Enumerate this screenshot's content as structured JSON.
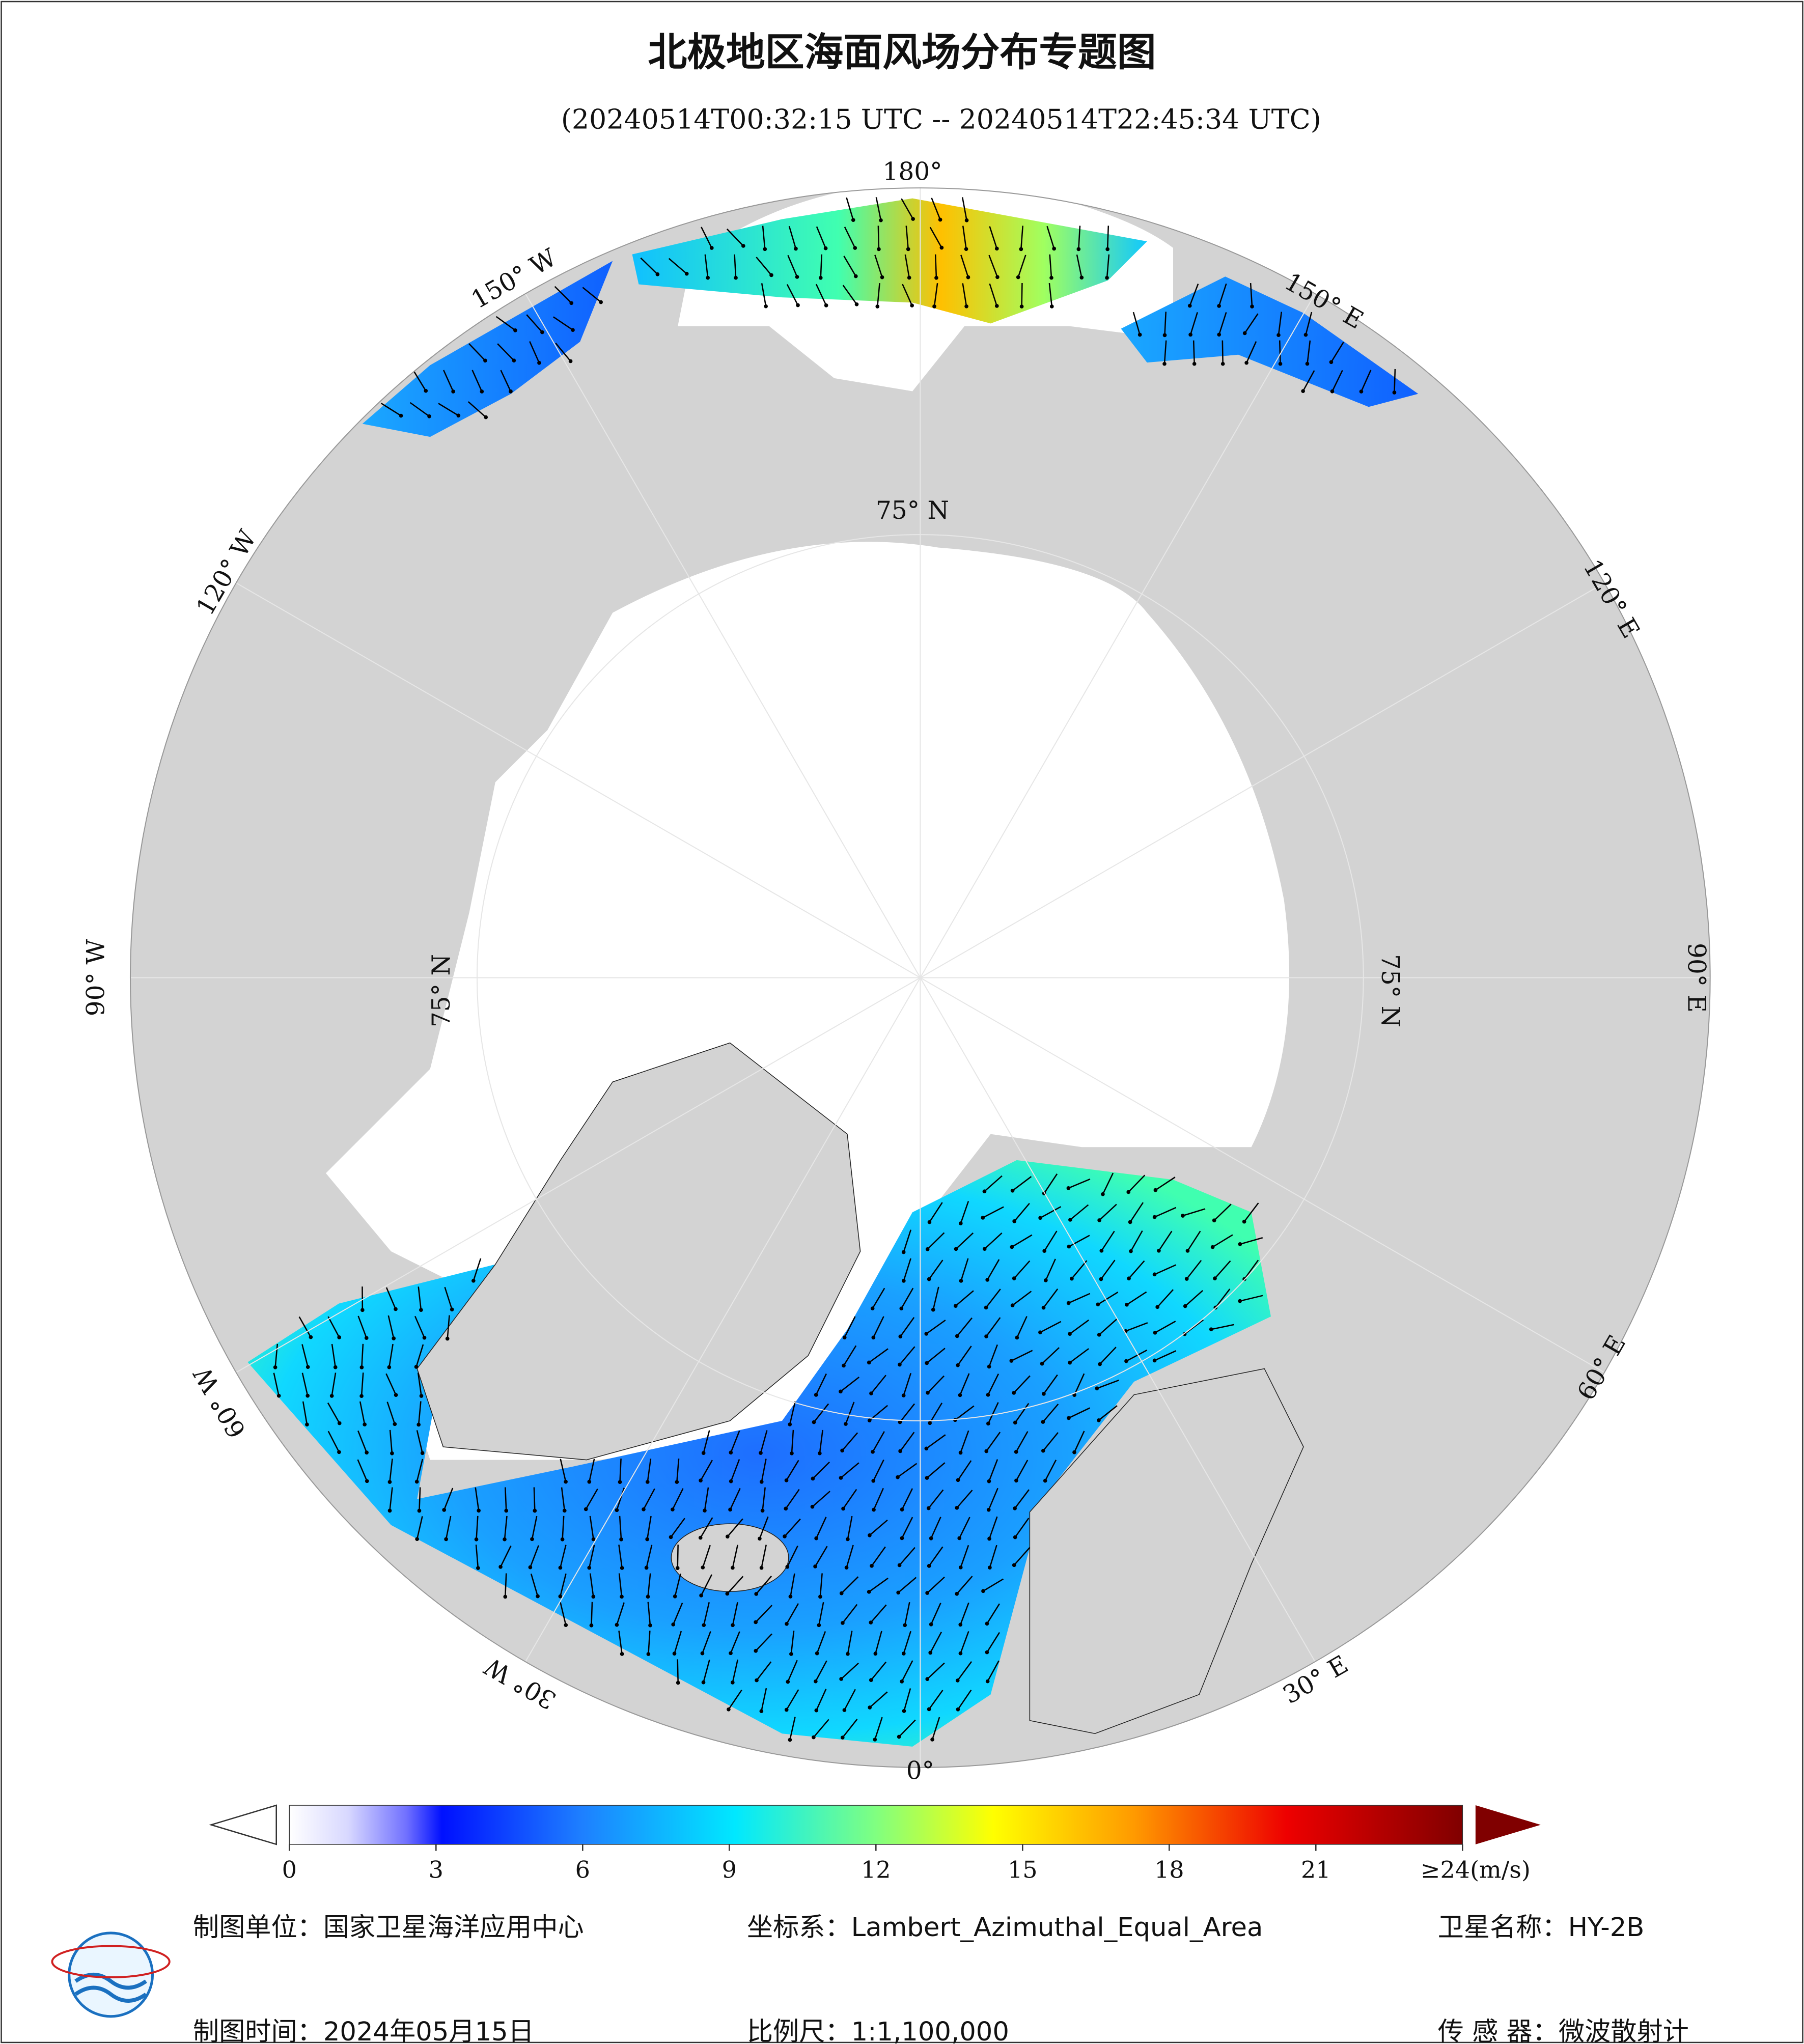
{
  "header": {
    "title": "北极地区海面风场分布专题图",
    "subtitle": "(20240514T00:32:15 UTC -- 20240514T22:45:34 UTC)"
  },
  "map": {
    "lon_labels": [
      "180°",
      "150° W",
      "120° W",
      "90° W",
      "60° W",
      "30° W",
      "0°",
      "30° E",
      "60° E",
      "90° E",
      "120° E",
      "150° E"
    ],
    "lat_labels": [
      "75° N",
      "75° N",
      "75° N"
    ]
  },
  "colorbar": {
    "lim": [
      0,
      24
    ],
    "ticks": [
      0,
      3,
      6,
      9,
      12,
      15,
      18,
      21,
      {
        "value": 24,
        "label": "≥24(m/s)"
      }
    ]
  },
  "footer": {
    "items": [
      "制图单位：国家卫星海洋应用中心",
      "坐标系：Lambert_Azimuthal_Equal_Area",
      "卫星名称：HY-2B",
      "制图时间：2024年05月15日",
      "比例尺：1:1,100,000",
      "传 感 器：微波散射计"
    ]
  }
}
